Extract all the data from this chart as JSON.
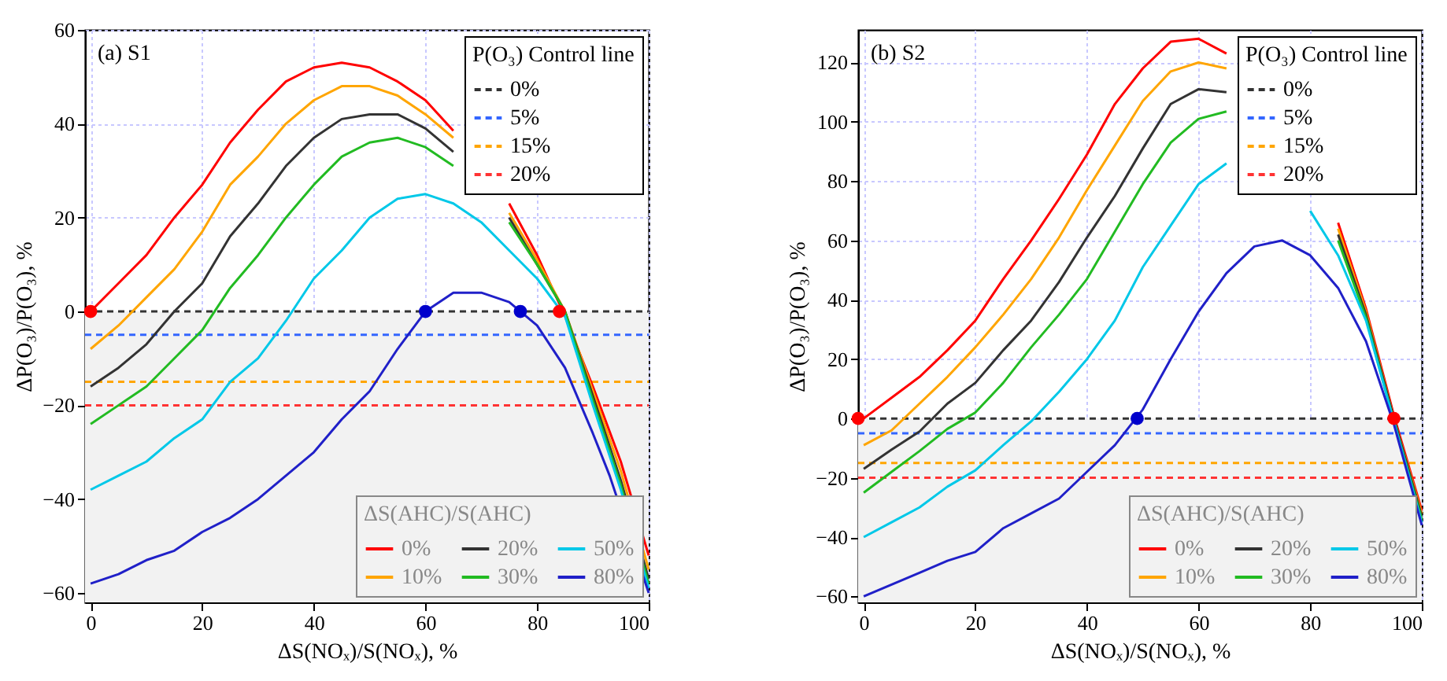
{
  "chart_data": [
    {
      "type": "line",
      "title": "(a) S1",
      "xlabel": "ΔS(NOₓ)/S(NOₓ), %",
      "ylabel": "ΔP(O₃)/P(O₃), %",
      "legend_title": "ΔS(AHC)/S(AHC)",
      "annotations": [
        "P(O₃) Control line"
      ],
      "x": [
        0,
        5,
        10,
        15,
        20,
        25,
        30,
        35,
        40,
        45,
        50,
        55,
        60,
        65,
        70,
        75,
        80,
        85,
        90,
        95,
        100
      ],
      "series": [
        {
          "name": "0%",
          "color": "#333333",
          "line_style": "dashed",
          "x": [
            -1,
            100
          ],
          "values": [
            0,
            0
          ]
        },
        {
          "name": "5%",
          "color": "#3366ff",
          "line_style": "dashed",
          "x": [
            -1,
            100
          ],
          "values": [
            -5,
            -5
          ]
        },
        {
          "name": "15%",
          "color": "#ffa500",
          "line_style": "dashed",
          "x": [
            -1,
            100
          ],
          "values": [
            -15,
            -15
          ]
        },
        {
          "name": "20%",
          "color": "#ff3333",
          "line_style": "dashed",
          "x": [
            -1,
            100
          ],
          "values": [
            -20,
            -20
          ]
        },
        {
          "name": "0%",
          "color": "#ff0000",
          "line_style": "solid",
          "values": [
            0,
            6,
            12,
            20,
            27,
            36,
            43,
            49,
            52,
            53,
            52,
            49,
            45,
            38.5,
            null,
            23,
            12,
            -1,
            -16,
            -32,
            -52
          ]
        },
        {
          "name": "10%",
          "color": "#ffa500",
          "line_style": "solid",
          "values": [
            -8,
            -3,
            3,
            9,
            17,
            27,
            33,
            40,
            45,
            48,
            48,
            46,
            42,
            37,
            null,
            21,
            11,
            0,
            -17,
            -34,
            -55
          ]
        },
        {
          "name": "20%",
          "color": "#333333",
          "line_style": "solid",
          "values": [
            -16,
            -12,
            -7,
            0,
            6,
            16,
            23,
            31,
            37,
            41,
            42,
            42,
            39,
            34,
            null,
            20,
            10,
            0,
            -18,
            -36,
            -57
          ]
        },
        {
          "name": "30%",
          "color": "#22bb22",
          "line_style": "solid",
          "values": [
            -24,
            -20,
            -16,
            -10,
            -4,
            5,
            12,
            20,
            27,
            33,
            36,
            37,
            35,
            31,
            null,
            19,
            10,
            0,
            -19,
            -37,
            -58
          ]
        },
        {
          "name": "50%",
          "color": "#00c8e8",
          "line_style": "solid",
          "values": [
            -38,
            -35,
            -32,
            -27,
            -23,
            -15,
            -10,
            -2,
            7,
            13,
            20,
            24,
            25,
            23,
            19,
            13,
            7,
            -1,
            -20,
            -38,
            -59
          ]
        },
        {
          "name": "80%",
          "color": "#2020c8",
          "line_style": "solid",
          "x": [
            0,
            5,
            10,
            15,
            20,
            25,
            30,
            35,
            40,
            45,
            50,
            55,
            60,
            65,
            70,
            75,
            80,
            85,
            90,
            93,
            100
          ],
          "values": [
            -58,
            -56,
            -53,
            -51,
            -47,
            -44,
            -40,
            -35,
            -30,
            -23,
            -17,
            -8,
            0,
            4,
            4,
            2,
            -3,
            -12,
            -26,
            -35,
            -60
          ]
        },
        {
          "type": "scatter",
          "color": "#ff0000",
          "marker": "circle",
          "x": [
            0,
            84
          ],
          "values": [
            0,
            0
          ]
        },
        {
          "type": "scatter",
          "color": "#0000cc",
          "marker": "circle",
          "x": [
            60,
            77
          ],
          "values": [
            0,
            0
          ]
        }
      ],
      "bands": [
        {
          "axis": "y",
          "from": -62,
          "to": 0,
          "color": "#f2f2f2"
        }
      ],
      "xlim": [
        -1,
        100
      ],
      "xticks": [
        0,
        20,
        40,
        60,
        80,
        100
      ],
      "ylim": [
        -62,
        60
      ],
      "yticks": [
        -60,
        -40,
        -20,
        0,
        20,
        40,
        60
      ],
      "grid": true,
      "legend": "bottom right",
      "marker": "none"
    },
    {
      "type": "line",
      "title": "(b) S2",
      "xlabel": "ΔS(NOₓ)/S(NOₓ), %",
      "ylabel": "ΔP(O₃)/P(O₃), %",
      "legend_title": "ΔS(AHC)/S(AHC)",
      "annotations": [
        "P(O₃) Control line"
      ],
      "x": [
        0,
        5,
        10,
        15,
        20,
        25,
        30,
        35,
        40,
        45,
        50,
        55,
        60,
        65,
        70,
        75,
        80,
        85,
        90,
        95,
        100
      ],
      "series": [
        {
          "name": "0%",
          "color": "#333333",
          "line_style": "dashed",
          "x": [
            -1,
            100
          ],
          "values": [
            0,
            0
          ]
        },
        {
          "name": "5%",
          "color": "#3366ff",
          "line_style": "dashed",
          "x": [
            -1,
            100
          ],
          "values": [
            -5,
            -5
          ]
        },
        {
          "name": "15%",
          "color": "#ffa500",
          "line_style": "dashed",
          "x": [
            -1,
            100
          ],
          "values": [
            -15,
            -15
          ]
        },
        {
          "name": "20%",
          "color": "#ff3333",
          "line_style": "dashed",
          "x": [
            -1,
            100
          ],
          "values": [
            -20,
            -20
          ]
        },
        {
          "name": "0%",
          "color": "#ff0000",
          "line_style": "solid",
          "values": [
            0,
            7,
            14,
            23,
            33,
            47,
            60,
            74,
            89,
            106,
            118,
            127,
            128,
            123,
            null,
            null,
            null,
            66,
            37,
            1,
            -31
          ]
        },
        {
          "name": "10%",
          "color": "#ffa500",
          "line_style": "solid",
          "values": [
            -9,
            -4,
            5,
            14,
            24,
            35,
            47,
            61,
            77,
            92,
            107,
            117,
            120,
            118,
            null,
            null,
            null,
            64,
            36,
            0,
            -32
          ]
        },
        {
          "name": "20%",
          "color": "#333333",
          "line_style": "solid",
          "values": [
            -17,
            -10.5,
            -4.4,
            5,
            12,
            23,
            33,
            46,
            61,
            75,
            91,
            106,
            111,
            110,
            null,
            null,
            null,
            62,
            35,
            0,
            -33
          ]
        },
        {
          "name": "30%",
          "color": "#22bb22",
          "line_style": "solid",
          "values": [
            -25,
            -18,
            -11,
            -3.5,
            2,
            12,
            24,
            35,
            47,
            63,
            79,
            93,
            101,
            103.5,
            null,
            null,
            null,
            60,
            34,
            -1,
            -34
          ]
        },
        {
          "name": "50%",
          "color": "#00c8e8",
          "line_style": "solid",
          "values": [
            -40,
            -35,
            -30,
            -23,
            -17.5,
            -9,
            -1,
            9,
            20,
            33,
            51,
            65,
            79,
            86,
            null,
            null,
            70,
            55,
            33,
            -1,
            -35
          ]
        },
        {
          "name": "80%",
          "color": "#2020c8",
          "line_style": "solid",
          "values": [
            -60,
            -56,
            -52,
            -48,
            -45,
            -37,
            -32,
            -27,
            -18,
            -9,
            3,
            20,
            36,
            49,
            58,
            60,
            55,
            44,
            26,
            -2,
            -36
          ]
        },
        {
          "type": "scatter",
          "color": "#ff0000",
          "marker": "circle",
          "x": [
            -1,
            95
          ],
          "values": [
            0,
            0
          ]
        },
        {
          "type": "scatter",
          "color": "#0000cc",
          "marker": "circle",
          "x": [
            49
          ],
          "values": [
            0
          ]
        }
      ],
      "bands": [
        {
          "axis": "y",
          "from": -62,
          "to": 0,
          "color": "#f2f2f2"
        }
      ],
      "xlim": [
        -1,
        100
      ],
      "xticks": [
        0,
        20,
        40,
        60,
        80,
        100
      ],
      "ylim": [
        -62,
        131
      ],
      "yticks": [
        -60,
        -40,
        -20,
        0,
        20,
        40,
        60,
        80,
        100,
        120
      ],
      "grid": true,
      "legend": "bottom right",
      "marker": "none"
    }
  ]
}
